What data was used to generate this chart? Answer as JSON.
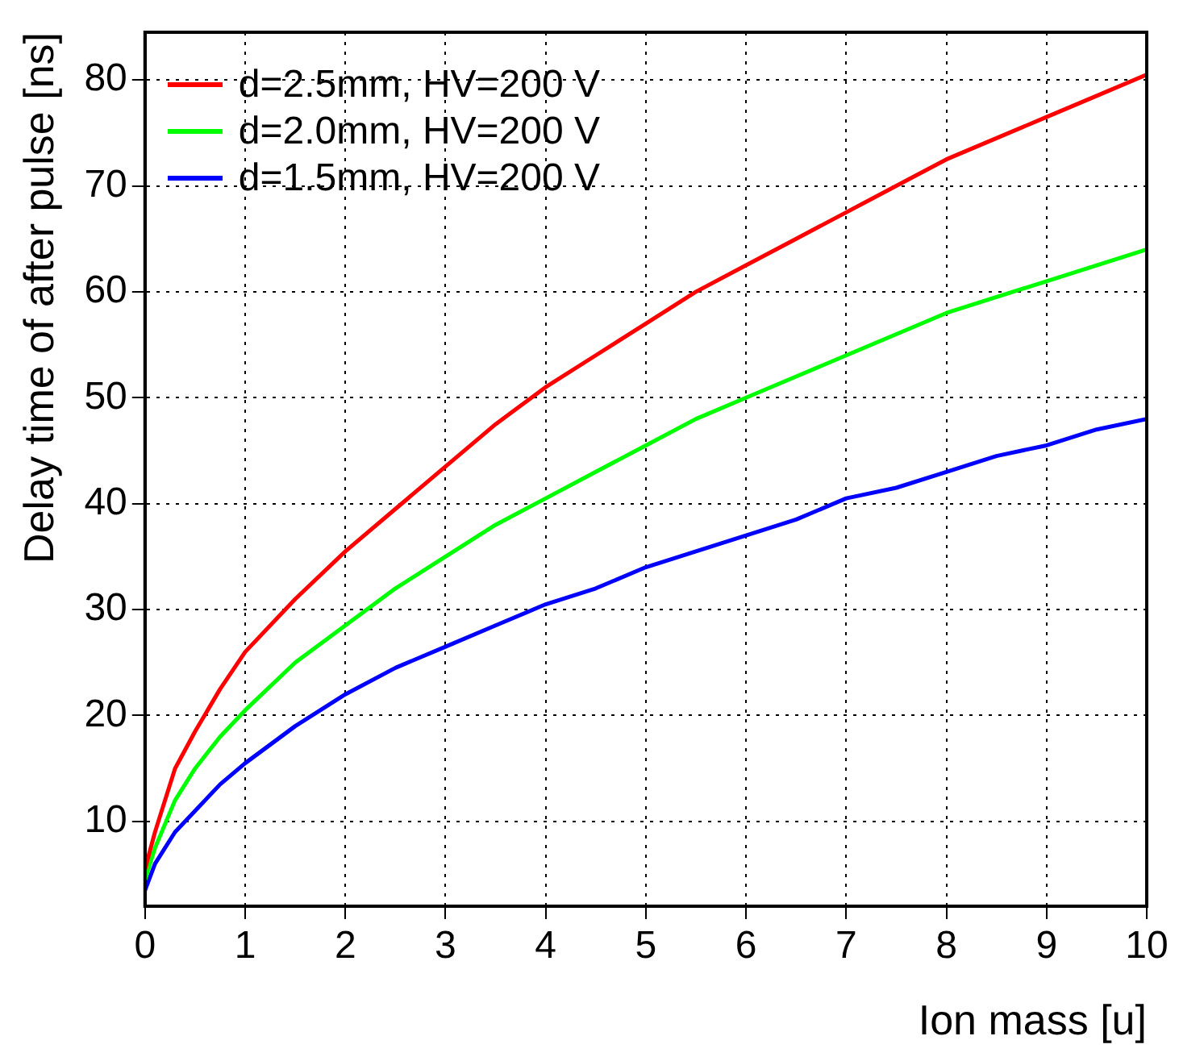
{
  "chart_data": {
    "type": "line",
    "xlabel": "Ion mass [u]",
    "ylabel": "Delay time of after pulse [ns]",
    "xlim": [
      0,
      10
    ],
    "xticks": [
      0,
      1,
      2,
      3,
      4,
      5,
      6,
      7,
      8,
      9,
      10
    ],
    "ylim": [
      2,
      84.5
    ],
    "yticks": [
      10,
      20,
      30,
      40,
      50,
      60,
      70,
      80
    ],
    "grid": true,
    "legend": "top left",
    "marker": "none",
    "line_style": "solid",
    "series": [
      {
        "name": "d=2.5mm, HV=200 V",
        "color": "#ff0000",
        "x": [
          0,
          0.1,
          0.3,
          0.5,
          0.75,
          1,
          1.5,
          2,
          2.5,
          3,
          3.5,
          4,
          4.5,
          5,
          5.5,
          6,
          6.5,
          7,
          7.5,
          8,
          8.5,
          9,
          9.5,
          10
        ],
        "values": [
          5.5,
          9,
          15,
          18.5,
          22.5,
          26,
          31,
          35.5,
          39.5,
          43.5,
          47.5,
          51,
          54,
          57,
          60,
          62.5,
          65,
          67.5,
          70,
          72.5,
          74.5,
          76.5,
          78.5,
          80.5
        ]
      },
      {
        "name": "d=2.0mm, HV=200 V",
        "color": "#00ff00",
        "x": [
          0,
          0.1,
          0.3,
          0.5,
          0.75,
          1,
          1.5,
          2,
          2.5,
          3,
          3.5,
          4,
          4.5,
          5,
          5.5,
          6,
          6.5,
          7,
          7.5,
          8,
          8.5,
          9,
          9.5,
          10
        ],
        "values": [
          4.5,
          7.5,
          12,
          15,
          18,
          20.5,
          25,
          28.5,
          32,
          35,
          38,
          40.5,
          43,
          45.5,
          48,
          50,
          52,
          54,
          56,
          58,
          59.5,
          61,
          62.5,
          64
        ]
      },
      {
        "name": "d=1.5mm, HV=200 V",
        "color": "#0000ff",
        "x": [
          0,
          0.1,
          0.3,
          0.5,
          0.75,
          1,
          1.5,
          2,
          2.5,
          3,
          3.5,
          4,
          4.5,
          5,
          5.5,
          6,
          6.5,
          7,
          7.5,
          8,
          8.5,
          9,
          9.5,
          10
        ],
        "values": [
          3.5,
          6,
          9,
          11,
          13.5,
          15.5,
          19,
          22,
          24.5,
          26.5,
          28.5,
          30.5,
          32,
          34,
          35.5,
          37,
          38.5,
          40.5,
          41.5,
          43,
          44.5,
          45.5,
          47,
          48
        ]
      }
    ]
  }
}
